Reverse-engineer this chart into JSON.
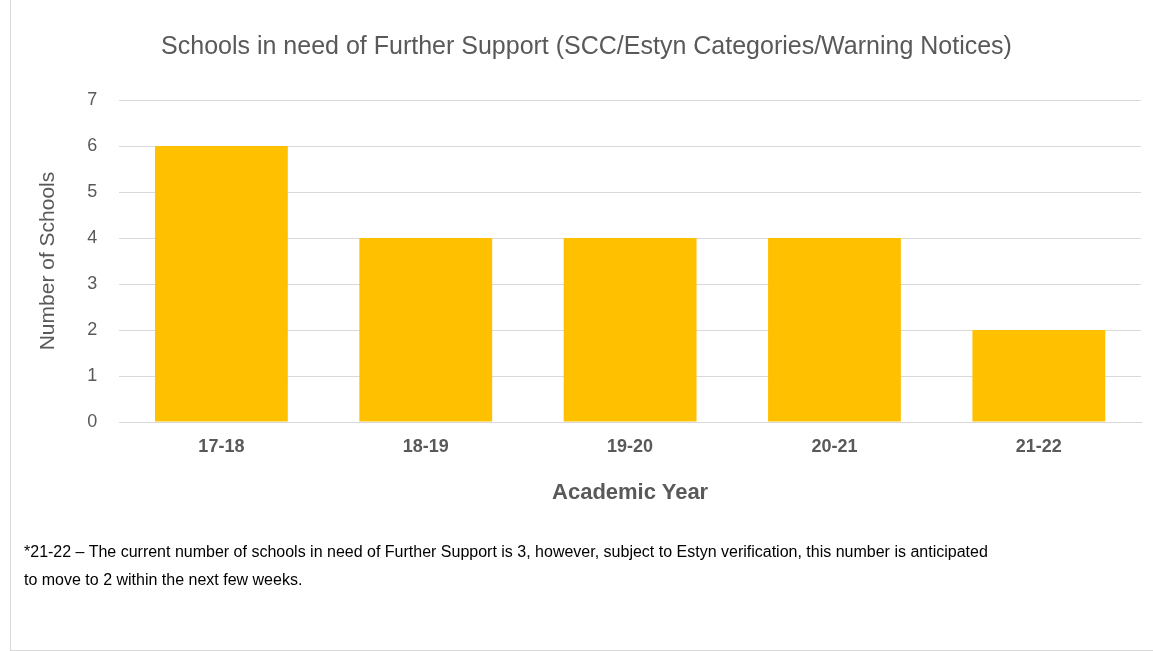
{
  "chart_data": {
    "type": "bar",
    "title": "Schools in need of Further Support (SCC/Estyn Categories/Warning Notices)",
    "xlabel": "Academic Year",
    "ylabel": "Number of Schools",
    "categories": [
      "17-18",
      "18-19",
      "19-20",
      "20-21",
      "21-22"
    ],
    "values": [
      6,
      4,
      4,
      4,
      2
    ],
    "color": "#ffc000",
    "ylim": [
      0,
      7
    ],
    "yticks": [
      0,
      1,
      2,
      3,
      4,
      5,
      6,
      7
    ],
    "grid": "y",
    "annotations": [
      "*21-22 – The current number of schools in need of Further Support is 3, however, subject to Estyn verification, this number is anticipated to move to 2 within the next few weeks."
    ]
  }
}
